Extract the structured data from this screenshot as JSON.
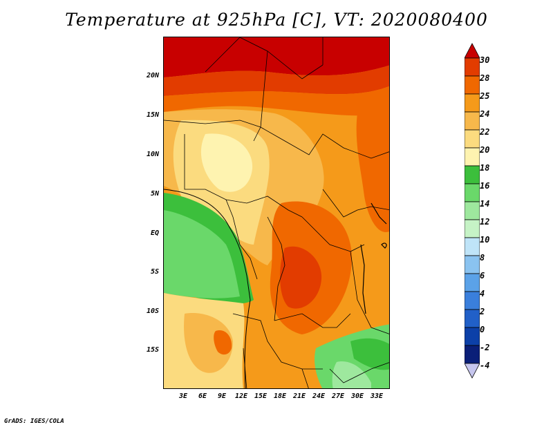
{
  "title": "Temperature at 925hPa [C], VT: 2020080400",
  "credit": "GrADS: IGES/COLA",
  "map": {
    "lat_labels": [
      "20N",
      "15N",
      "10N",
      "5N",
      "EQ",
      "5S",
      "10S",
      "15S"
    ],
    "lon_labels": [
      "3E",
      "6E",
      "9E",
      "12E",
      "15E",
      "18E",
      "21E",
      "24E",
      "27E",
      "30E",
      "33E"
    ],
    "lon_range_deg": [
      0,
      35
    ],
    "lat_range_deg": [
      -20,
      25
    ]
  },
  "legend": {
    "levels": [
      "30",
      "28",
      "25",
      "24",
      "22",
      "20",
      "18",
      "16",
      "14",
      "12",
      "10",
      "8",
      "6",
      "4",
      "2",
      "0",
      "-2",
      "-4"
    ],
    "colors": [
      "#c80000",
      "#e23c00",
      "#f06800",
      "#f59a1a",
      "#f7b84b",
      "#fbdb7f",
      "#fef3b0",
      "#3cbf3c",
      "#6ad86a",
      "#9ee89e",
      "#c6f3c6",
      "#bfe4f8",
      "#8ac3f0",
      "#5ba2e8",
      "#3a7fdc",
      "#2160c8",
      "#0c40a8",
      "#0a1f78",
      "#c6c6ee"
    ]
  }
}
